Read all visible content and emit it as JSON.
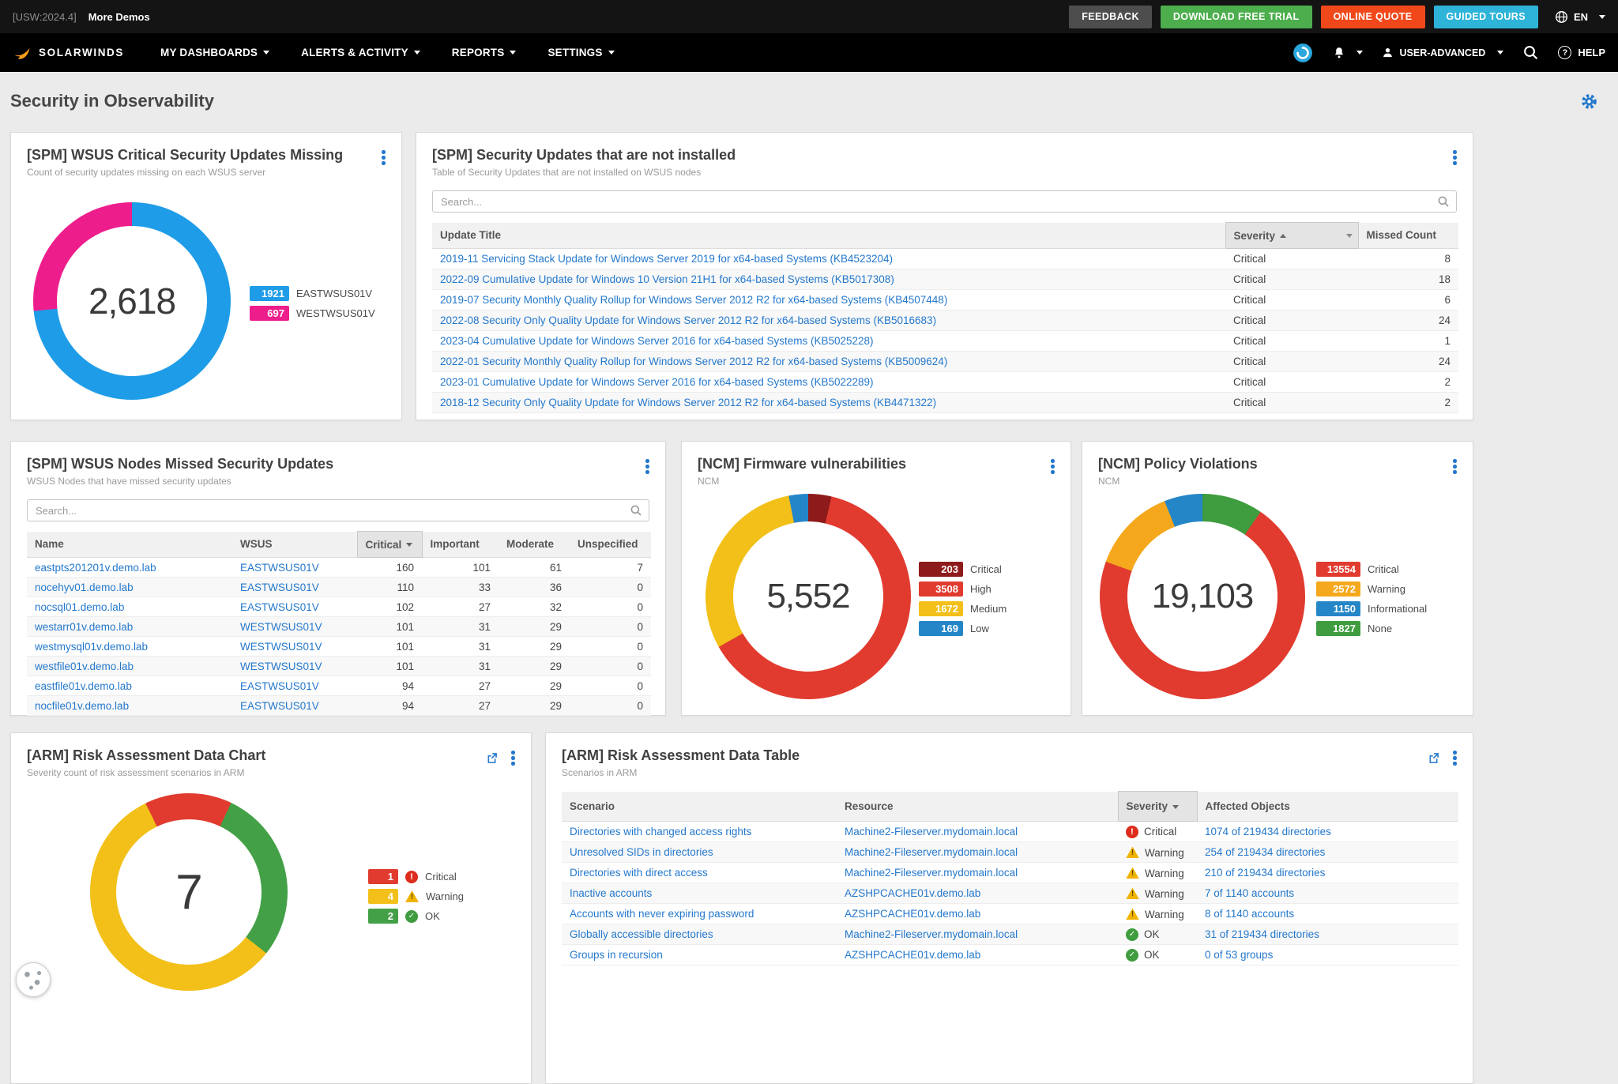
{
  "topbar": {
    "version": "[USW:2024.4]",
    "more_demos": "More Demos",
    "buttons": [
      {
        "label": "FEEDBACK",
        "color": "#4d4d4d"
      },
      {
        "label": "DOWNLOAD FREE TRIAL",
        "color": "#4cae4c"
      },
      {
        "label": "ONLINE QUOTE",
        "color": "#f0481a"
      },
      {
        "label": "GUIDED TOURS",
        "color": "#2fb4d9"
      }
    ],
    "language": "EN"
  },
  "nav": {
    "brand": "solarwinds",
    "items": [
      "MY DASHBOARDS",
      "ALERTS & ACTIVITY",
      "REPORTS",
      "SETTINGS"
    ],
    "user_label": "USER-ADVANCED",
    "help_label": "HELP"
  },
  "page": {
    "title": "Security in Observability"
  },
  "icons": {
    "globe-icon": "globe",
    "search-icon": "magnifier",
    "bell-icon": "bell",
    "user-icon": "person",
    "help-icon": "?",
    "settings-gear-icon": "gear",
    "widget-menu-kebab-icon": "vertical-ellipsis",
    "open-in-new-icon": "box-arrow",
    "critical-icon": "!",
    "warning-icon": "triangle-!",
    "ok-icon": "check",
    "sort-asc-icon": "triangle-up",
    "sort-desc-icon": "triangle-down",
    "cookie-icon": "cookie"
  },
  "widgets": {
    "wsus_missing": {
      "title": "[SPM] WSUS Critical Security Updates Missing",
      "subtitle": "Count of security updates missing on each WSUS server"
    },
    "updates": {
      "title": "[SPM] Security Updates that are not installed",
      "subtitle": "Table of Security Updates that are not installed on WSUS nodes",
      "search_placeholder": "Search...",
      "columns": [
        "Update Title",
        "Severity",
        "Missed Count"
      ],
      "rows": [
        {
          "title": "2019-11 Servicing Stack Update for Windows Server 2019 for x64-based Systems (KB4523204)",
          "severity": "Critical",
          "count": 8
        },
        {
          "title": "2022-09 Cumulative Update for Windows 10 Version 21H1 for x64-based Systems (KB5017308)",
          "severity": "Critical",
          "count": 18
        },
        {
          "title": "2019-07 Security Monthly Quality Rollup for Windows Server 2012 R2 for x64-based Systems (KB4507448)",
          "severity": "Critical",
          "count": 6
        },
        {
          "title": "2022-08 Security Only Quality Update for Windows Server 2012 R2 for x64-based Systems (KB5016683)",
          "severity": "Critical",
          "count": 24
        },
        {
          "title": "2023-04 Cumulative Update for Windows Server 2016 for x64-based Systems (KB5025228)",
          "severity": "Critical",
          "count": 1
        },
        {
          "title": "2022-01 Security Monthly Quality Rollup for Windows Server 2012 R2 for x64-based Systems (KB5009624)",
          "severity": "Critical",
          "count": 24
        },
        {
          "title": "2023-01 Cumulative Update for Windows Server 2016 for x64-based Systems (KB5022289)",
          "severity": "Critical",
          "count": 2
        },
        {
          "title": "2018-12 Security Only Quality Update for Windows Server 2012 R2 for x64-based Systems (KB4471322)",
          "severity": "Critical",
          "count": 2
        }
      ]
    },
    "nodes": {
      "title": "[SPM] WSUS Nodes Missed Security Updates",
      "subtitle": "WSUS Nodes that have missed security updates",
      "search_placeholder": "Search...",
      "columns": [
        "Name",
        "WSUS",
        "Critical",
        "Important",
        "Moderate",
        "Unspecified"
      ],
      "rows": [
        [
          "eastpts201201v.demo.lab",
          "EASTWSUS01V",
          160,
          101,
          61,
          7
        ],
        [
          "nocehyv01.demo.lab",
          "EASTWSUS01V",
          110,
          33,
          36,
          0
        ],
        [
          "nocsql01.demo.lab",
          "EASTWSUS01V",
          102,
          27,
          32,
          0
        ],
        [
          "westarr01v.demo.lab",
          "WESTWSUS01V",
          101,
          31,
          29,
          0
        ],
        [
          "westmysql01v.demo.lab",
          "WESTWSUS01V",
          101,
          31,
          29,
          0
        ],
        [
          "westfile01v.demo.lab",
          "WESTWSUS01V",
          101,
          31,
          29,
          0
        ],
        [
          "eastfile01v.demo.lab",
          "EASTWSUS01V",
          94,
          27,
          29,
          0
        ],
        [
          "nocfile01v.demo.lab",
          "EASTWSUS01V",
          94,
          27,
          29,
          0
        ]
      ]
    },
    "firmware": {
      "title": "[NCM] Firmware vulnerabilities",
      "subtitle": "NCM"
    },
    "policy": {
      "title": "[NCM] Policy Violations",
      "subtitle": "NCM"
    },
    "arm_chart": {
      "title": "[ARM] Risk Assessment Data Chart",
      "subtitle": "Severity count of risk assessment scenarios in ARM"
    },
    "arm_table": {
      "title": "[ARM] Risk Assessment Data Table",
      "subtitle": "Scenarios in ARM",
      "columns": [
        "Scenario",
        "Resource",
        "Severity",
        "Affected Objects"
      ],
      "rows": [
        {
          "scenario": "Directories with changed access rights",
          "resource": "Machine2-Fileserver.mydomain.local",
          "severity": "Critical",
          "icon": "critical",
          "affected": "1074 of 219434 directories"
        },
        {
          "scenario": "Unresolved SIDs in directories",
          "resource": "Machine2-Fileserver.mydomain.local",
          "severity": "Warning",
          "icon": "warning",
          "affected": "254 of 219434 directories"
        },
        {
          "scenario": "Directories with direct access",
          "resource": "Machine2-Fileserver.mydomain.local",
          "severity": "Warning",
          "icon": "warning",
          "affected": "210 of 219434 directories"
        },
        {
          "scenario": "Inactive accounts",
          "resource": "AZSHPCACHE01v.demo.lab",
          "severity": "Warning",
          "icon": "warning",
          "affected": "7 of 1140 accounts"
        },
        {
          "scenario": "Accounts with never expiring password",
          "resource": "AZSHPCACHE01v.demo.lab",
          "severity": "Warning",
          "icon": "warning",
          "affected": "8 of 1140 accounts"
        },
        {
          "scenario": "Globally accessible directories",
          "resource": "Machine2-Fileserver.mydomain.local",
          "severity": "OK",
          "icon": "ok",
          "affected": "31 of 219434 directories"
        },
        {
          "scenario": "Groups in recursion",
          "resource": "AZSHPCACHE01v.demo.lab",
          "severity": "OK",
          "icon": "ok",
          "affected": "0 of 53 groups"
        }
      ]
    }
  },
  "chart_data": [
    {
      "id": "wsus-updates-missing",
      "type": "pie",
      "title": "[SPM] WSUS Critical Security Updates Missing",
      "total": 2618,
      "total_label": "2,618",
      "segments": [
        {
          "label": "EASTWSUS01V",
          "value": 1921,
          "color": "#1e9ce8"
        },
        {
          "label": "WESTWSUS01V",
          "value": 697,
          "color": "#ed1e8c"
        }
      ]
    },
    {
      "id": "firmware-vulnerabilities",
      "type": "pie",
      "title": "[NCM] Firmware vulnerabilities",
      "total": 5552,
      "total_label": "5,552",
      "segments": [
        {
          "label": "Critical",
          "value": 203,
          "color": "#8e1b1b"
        },
        {
          "label": "High",
          "value": 3508,
          "color": "#e13b2f"
        },
        {
          "label": "Medium",
          "value": 1672,
          "color": "#f2c019"
        },
        {
          "label": "Low",
          "value": 169,
          "color": "#2586c7"
        }
      ]
    },
    {
      "id": "policy-violations",
      "type": "pie",
      "title": "[NCM] Policy Violations",
      "total": 19103,
      "total_label": "19,103",
      "segments": [
        {
          "label": "Critical",
          "value": 13554,
          "color": "#e13b2f"
        },
        {
          "label": "Warning",
          "value": 2572,
          "color": "#f5a81c"
        },
        {
          "label": "Informational",
          "value": 1150,
          "color": "#2586c7"
        },
        {
          "label": "None",
          "value": 1827,
          "color": "#3f9c3f"
        }
      ],
      "draw_order": [
        3,
        0,
        1,
        2
      ]
    },
    {
      "id": "arm-risk-severity",
      "type": "pie",
      "title": "[ARM] Risk Assessment Data Chart",
      "total": 7,
      "total_label": "7",
      "segments": [
        {
          "label": "Critical",
          "value": 1,
          "color": "#e13b2f",
          "icon": "critical"
        },
        {
          "label": "Warning",
          "value": 4,
          "color": "#f2c019",
          "icon": "warning"
        },
        {
          "label": "OK",
          "value": 2,
          "color": "#43a047",
          "icon": "ok"
        }
      ],
      "draw_order": [
        0,
        2,
        1
      ],
      "start_deg": -26
    }
  ]
}
